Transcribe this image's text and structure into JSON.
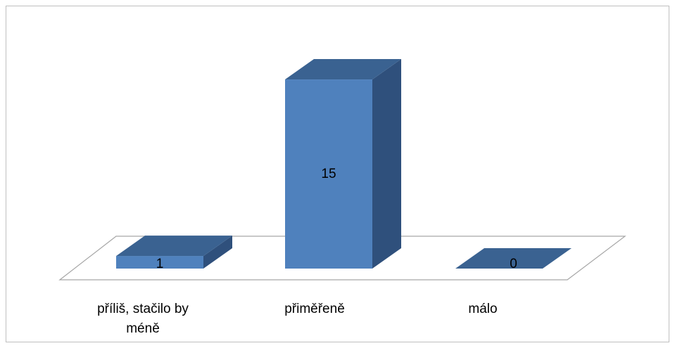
{
  "chart_data": {
    "type": "bar",
    "style": "3d-column",
    "categories": [
      "příliš, stačilo by méně",
      "přiměřeně",
      "málo"
    ],
    "category_lines": [
      [
        "příliš, stačilo by",
        "méně"
      ],
      [
        "přiměřeně"
      ],
      [
        "málo"
      ]
    ],
    "values": [
      1,
      15,
      0
    ],
    "data_labels": [
      "1",
      "15",
      "0"
    ],
    "title": "",
    "xlabel": "",
    "ylabel": "",
    "ylim": [
      0,
      15
    ],
    "grid": false,
    "legend": "none",
    "colors": {
      "front": "#4f81bd",
      "top": "#3a6291",
      "side": "#2f507c",
      "floor_stroke": "#a6a6a6"
    }
  }
}
